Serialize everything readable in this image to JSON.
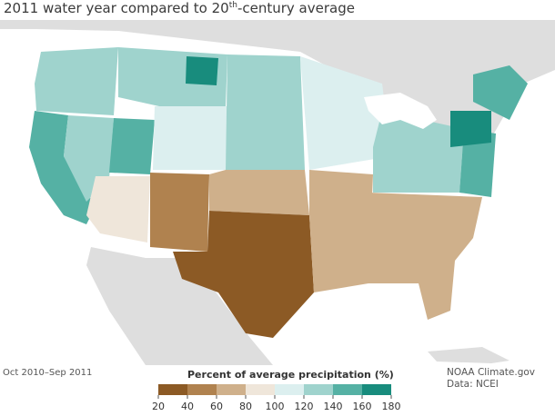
{
  "title": {
    "prefix": "2011 water year compared to 20",
    "superscript": "th",
    "suffix": "-century average"
  },
  "period_label": "Oct 2010–Sep 2011",
  "credit": {
    "line1": "NOAA Climate.gov",
    "line2": "Data: NCEI"
  },
  "legend": {
    "title": "Percent of average precipitation (%)",
    "ticks": [
      "20",
      "40",
      "60",
      "80",
      "100",
      "120",
      "140",
      "160",
      "180"
    ],
    "colors": [
      "#8c5a25",
      "#b0824f",
      "#cfb08b",
      "#efe6da",
      "#dcefef",
      "#9fd3cd",
      "#55b1a4",
      "#188c7d"
    ]
  },
  "colors": {
    "land_outside": "#dedede",
    "water": "#ffffff",
    "state_border": "#ffffff"
  },
  "regions": [
    {
      "name": "Pacific Northwest",
      "bin": 5
    },
    {
      "name": "California",
      "bin": 6
    },
    {
      "name": "Utah",
      "bin": 6
    },
    {
      "name": "Montana",
      "bin": 6
    },
    {
      "name": "Northern Plains",
      "bin": 5
    },
    {
      "name": "Texas",
      "bin": 0
    },
    {
      "name": "New Mexico",
      "bin": 1
    },
    {
      "name": "Southeast",
      "bin": 2
    },
    {
      "name": "Ohio Valley",
      "bin": 5
    },
    {
      "name": "Northeast",
      "bin": 6
    },
    {
      "name": "Pennsylvania",
      "bin": 7
    }
  ]
}
